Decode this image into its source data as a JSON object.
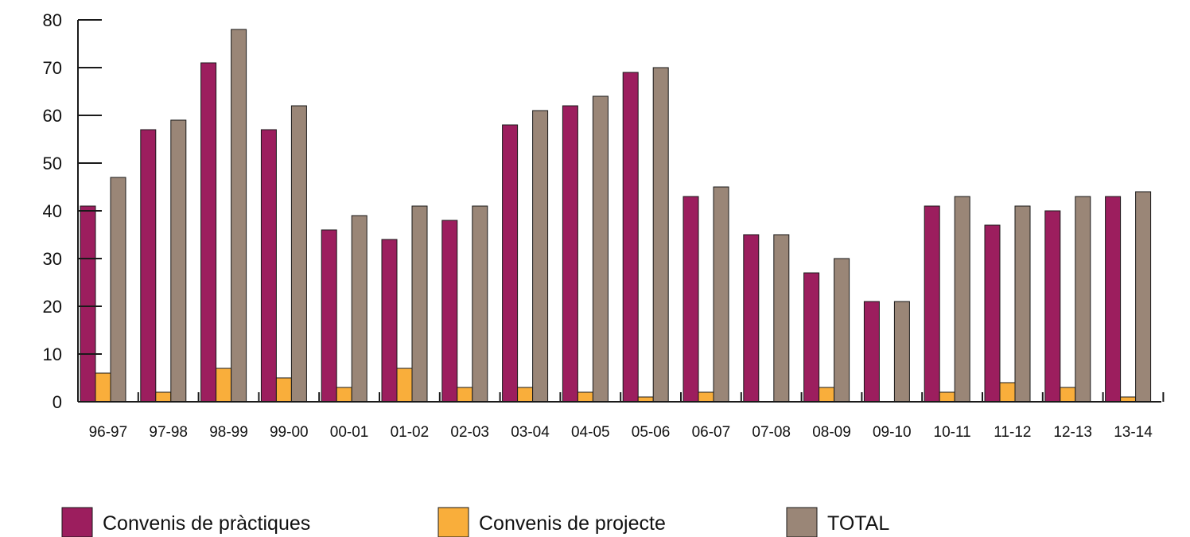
{
  "chart_data": {
    "type": "bar",
    "title": "",
    "xlabel": "",
    "ylabel": "",
    "ylim": [
      0,
      80
    ],
    "yticks": [
      0,
      10,
      20,
      30,
      40,
      50,
      60,
      70,
      80
    ],
    "grid": false,
    "legend_position": "bottom",
    "categories": [
      "96-97",
      "97-98",
      "98-99",
      "99-00",
      "00-01",
      "01-02",
      "02-03",
      "03-04",
      "04-05",
      "05-06",
      "06-07",
      "07-08",
      "08-09",
      "09-10",
      "10-11",
      "11-12",
      "12-13",
      "13-14"
    ],
    "series": [
      {
        "name": "Convenis de pràctiques",
        "color": "#9C1E5E",
        "values": [
          41,
          57,
          71,
          57,
          36,
          34,
          38,
          58,
          62,
          69,
          43,
          35,
          27,
          21,
          41,
          37,
          40,
          43
        ]
      },
      {
        "name": "Convenis de projecte",
        "color": "#F9AE3B",
        "values": [
          6,
          2,
          7,
          5,
          3,
          7,
          3,
          3,
          2,
          1,
          2,
          0,
          3,
          0,
          2,
          4,
          3,
          1
        ]
      },
      {
        "name": "TOTAL",
        "color": "#9A8677",
        "values": [
          47,
          59,
          78,
          62,
          39,
          41,
          41,
          61,
          64,
          70,
          45,
          35,
          30,
          21,
          43,
          41,
          43,
          44
        ]
      }
    ]
  }
}
